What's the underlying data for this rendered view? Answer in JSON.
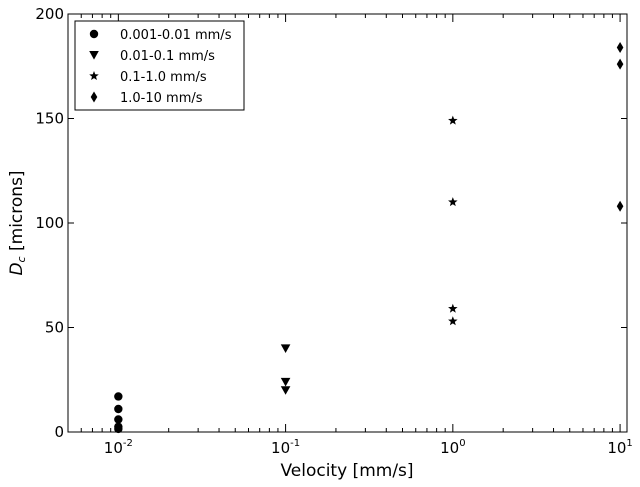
{
  "chart_data": {
    "type": "scatter",
    "x_scale": "log",
    "xlabel": "Velocity [mm/s]",
    "ylabel_main": "D",
    "ylabel_sub": "c",
    "ylabel_rest": " [microns]",
    "xlim": [
      0.005,
      11
    ],
    "ylim": [
      0,
      200
    ],
    "y_ticks": [
      0,
      50,
      100,
      150,
      200
    ],
    "y_tick_labels": [
      "0",
      "50",
      "100",
      "150",
      "200"
    ],
    "x_ticks": [
      0.01,
      0.1,
      1,
      10
    ],
    "x_tick_base": "10",
    "x_tick_exponents": [
      "-2",
      "-1",
      "0",
      "1"
    ],
    "legend_placement": "top-left",
    "grid": false,
    "series": [
      {
        "name": "0.001-0.01 mm/s",
        "marker": "circle",
        "x": [
          0.01,
          0.01,
          0.01,
          0.01,
          0.01
        ],
        "y": [
          1.5,
          2.5,
          6,
          11,
          17
        ]
      },
      {
        "name": "0.01-0.1 mm/s",
        "marker": "triangle",
        "x": [
          0.1,
          0.1,
          0.1
        ],
        "y": [
          20,
          24,
          40
        ]
      },
      {
        "name": "0.1-1.0 mm/s",
        "marker": "star",
        "x": [
          1,
          1,
          1,
          1
        ],
        "y": [
          53,
          59,
          110,
          149
        ]
      },
      {
        "name": "1.0-10 mm/s",
        "marker": "diamond",
        "x": [
          10,
          10,
          10
        ],
        "y": [
          108,
          176,
          184
        ]
      }
    ]
  }
}
